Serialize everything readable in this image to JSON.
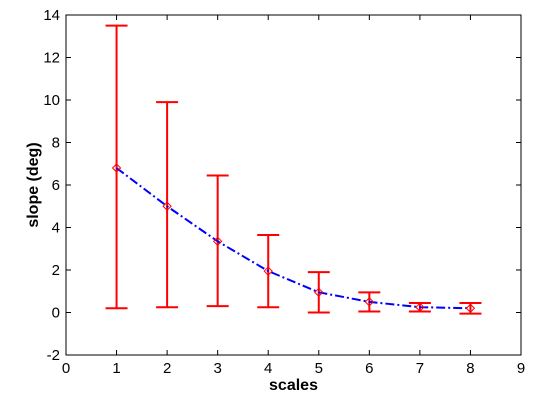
{
  "chart_data": {
    "type": "line",
    "title": "",
    "xlabel": "scales",
    "ylabel": "slope (deg)",
    "xlim": [
      0,
      9
    ],
    "ylim": [
      -2,
      14
    ],
    "xticks": [
      "0",
      "1",
      "2",
      "3",
      "4",
      "5",
      "6",
      "7",
      "8",
      "9"
    ],
    "yticks": [
      "-2",
      "0",
      "2",
      "4",
      "6",
      "8",
      "10",
      "12",
      "14"
    ],
    "grid": false,
    "legend": "none",
    "series": [
      {
        "style": "dash-dot line with diamond markers",
        "color": "#0000ff",
        "marker_color": "#ff0000",
        "x": [
          1,
          2,
          3,
          4,
          5,
          6,
          7,
          8
        ],
        "y": [
          6.8,
          5.0,
          3.35,
          1.95,
          0.95,
          0.5,
          0.25,
          0.2
        ]
      }
    ],
    "error_bars": {
      "color": "#ff0000",
      "x": [
        1,
        2,
        3,
        4,
        5,
        6,
        7,
        8
      ],
      "lower": [
        0.2,
        0.25,
        0.3,
        0.25,
        0.0,
        0.05,
        0.05,
        -0.05
      ],
      "upper": [
        13.5,
        9.9,
        6.45,
        3.65,
        1.9,
        0.95,
        0.45,
        0.45
      ]
    }
  }
}
